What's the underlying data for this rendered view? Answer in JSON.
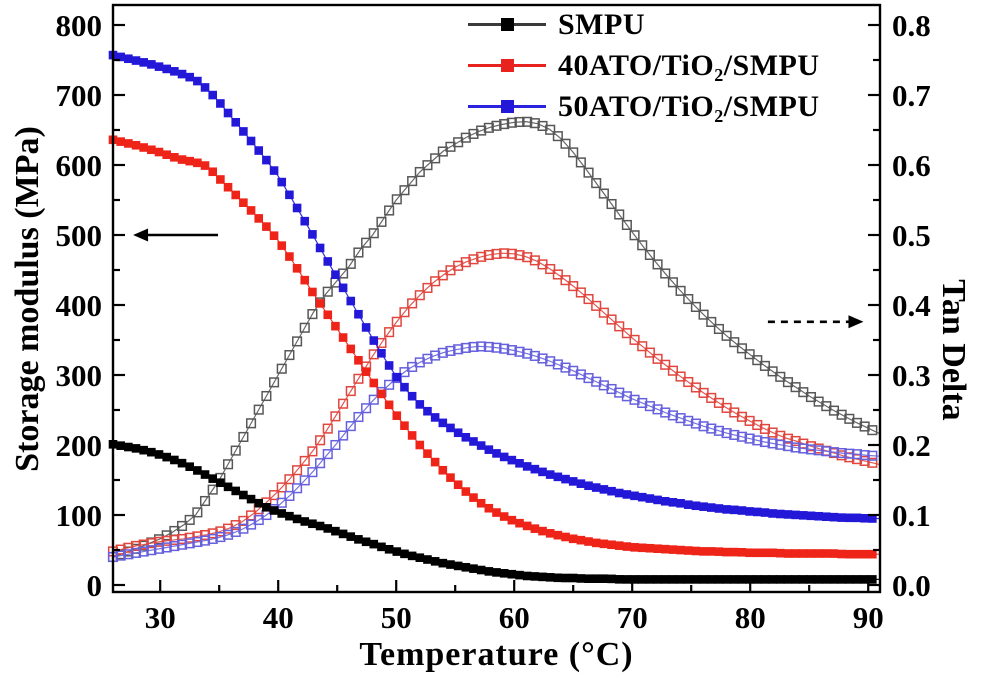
{
  "chart_data": {
    "type": "line",
    "title": "",
    "xlabel": "Temperature (°C)",
    "ylabel_left": "Storage modulus (MPa)",
    "ylabel_right": "Tan Delta",
    "x_range": [
      26,
      91
    ],
    "yleft_range": [
      0,
      838
    ],
    "yright_range": [
      0.0,
      0.838
    ],
    "grid": false,
    "legend_position": "top-center",
    "x_ticks": [
      30,
      40,
      50,
      60,
      70,
      80,
      90
    ],
    "x_minor_ticks": [
      35,
      45,
      55,
      65,
      75,
      85
    ],
    "yleft_ticks": [
      0,
      100,
      200,
      300,
      400,
      500,
      600,
      700,
      800
    ],
    "yleft_minor_ticks": [
      50,
      150,
      250,
      350,
      450,
      550,
      650,
      750
    ],
    "yright_ticks": [
      0.0,
      0.1,
      0.2,
      0.3,
      0.4,
      0.5,
      0.6,
      0.7,
      0.8
    ],
    "yright_minor_ticks": [
      0.05,
      0.15,
      0.25,
      0.35,
      0.45,
      0.55,
      0.65,
      0.75
    ],
    "x": [
      26,
      27,
      28,
      29,
      30,
      31,
      32,
      33,
      34,
      35,
      36,
      37,
      38,
      39,
      40,
      41,
      42,
      43,
      44,
      45,
      46,
      47,
      48,
      49,
      50,
      51,
      52,
      53,
      54,
      55,
      56,
      57,
      58,
      59,
      60,
      61,
      62,
      63,
      64,
      65,
      66,
      67,
      68,
      69,
      70,
      71,
      72,
      73,
      74,
      75,
      76,
      77,
      78,
      79,
      80,
      81,
      82,
      83,
      84,
      85,
      86,
      87,
      88,
      89,
      90,
      91
    ],
    "series": [
      {
        "name": "SMPU",
        "axis": "left",
        "marker": "filled",
        "color": "#000000",
        "values": [
          201,
          198,
          195,
          191,
          186,
          180,
          173,
          165,
          156,
          147,
          138,
          129,
          120,
          111,
          104,
          98,
          92,
          87,
          82,
          76,
          70,
          64,
          59,
          53,
          48,
          43,
          39,
          35,
          31,
          28,
          25,
          22,
          19,
          17,
          15,
          13,
          12,
          11,
          10,
          10,
          9,
          9,
          9,
          8,
          8,
          8,
          8,
          8,
          8,
          8,
          8,
          8,
          8,
          8,
          8,
          8,
          8,
          8,
          8,
          8,
          8,
          8,
          8,
          8,
          8,
          8
        ]
      },
      {
        "name": "40ATO/TiO₂/SMPU",
        "axis": "left",
        "marker": "filled",
        "color": "#ee2418",
        "values": [
          636,
          632,
          628,
          623,
          618,
          612,
          607,
          604,
          598,
          581,
          564,
          547,
          530,
          512,
          492,
          468,
          442,
          416,
          391,
          366,
          341,
          316,
          291,
          267,
          243,
          221,
          200,
          181,
          163,
          147,
          132,
          119,
          108,
          99,
          91,
          85,
          79,
          74,
          70,
          66,
          63,
          60,
          58,
          56,
          54,
          53,
          52,
          51,
          50,
          49,
          48,
          48,
          47,
          47,
          46,
          46,
          46,
          45,
          45,
          45,
          45,
          45,
          44,
          44,
          44,
          44
        ]
      },
      {
        "name": "50ATO/TiO₂/SMPU",
        "axis": "left",
        "marker": "filled",
        "color": "#2418d8",
        "values": [
          757,
          753,
          749,
          745,
          740,
          735,
          729,
          722,
          708,
          690,
          669,
          649,
          628,
          607,
          584,
          556,
          527,
          498,
          468,
          439,
          410,
          381,
          352,
          324,
          298,
          276,
          258,
          243,
          231,
          220,
          210,
          201,
          192,
          184,
          177,
          170,
          164,
          158,
          153,
          148,
          143,
          139,
          135,
          131,
          128,
          125,
          122,
          119,
          117,
          114,
          112,
          110,
          108,
          107,
          105,
          104,
          102,
          101,
          100,
          99,
          98,
          97,
          96,
          96,
          95,
          95
        ]
      },
      {
        "name": "SMPU",
        "axis": "right",
        "marker": "open",
        "color": "#575757",
        "values": [
          0.04,
          0.046,
          0.052,
          0.059,
          0.066,
          0.075,
          0.086,
          0.1,
          0.125,
          0.15,
          0.18,
          0.21,
          0.24,
          0.27,
          0.3,
          0.33,
          0.36,
          0.39,
          0.415,
          0.435,
          0.455,
          0.48,
          0.5,
          0.525,
          0.55,
          0.57,
          0.59,
          0.605,
          0.62,
          0.63,
          0.64,
          0.648,
          0.654,
          0.658,
          0.661,
          0.662,
          0.659,
          0.651,
          0.637,
          0.618,
          0.596,
          0.573,
          0.55,
          0.527,
          0.504,
          0.482,
          0.461,
          0.441,
          0.422,
          0.404,
          0.387,
          0.371,
          0.356,
          0.342,
          0.329,
          0.316,
          0.304,
          0.292,
          0.281,
          0.27,
          0.26,
          0.25,
          0.241,
          0.232,
          0.224,
          0.216
        ]
      },
      {
        "name": "40ATO/TiO₂/SMPU",
        "axis": "right",
        "marker": "open",
        "color": "#e0463e",
        "values": [
          0.048,
          0.052,
          0.056,
          0.059,
          0.062,
          0.064,
          0.066,
          0.069,
          0.072,
          0.076,
          0.082,
          0.091,
          0.103,
          0.118,
          0.134,
          0.152,
          0.172,
          0.193,
          0.218,
          0.245,
          0.273,
          0.3,
          0.327,
          0.352,
          0.375,
          0.396,
          0.414,
          0.43,
          0.443,
          0.454,
          0.462,
          0.468,
          0.472,
          0.474,
          0.473,
          0.469,
          0.462,
          0.452,
          0.44,
          0.427,
          0.413,
          0.398,
          0.383,
          0.368,
          0.353,
          0.339,
          0.325,
          0.312,
          0.299,
          0.287,
          0.275,
          0.264,
          0.253,
          0.243,
          0.234,
          0.225,
          0.217,
          0.21,
          0.205,
          0.199,
          0.194,
          0.189,
          0.184,
          0.18,
          0.176,
          0.172
        ]
      },
      {
        "name": "50ATO/TiO₂/SMPU",
        "axis": "right",
        "marker": "open",
        "color": "#6660dd",
        "values": [
          0.04,
          0.043,
          0.046,
          0.049,
          0.052,
          0.055,
          0.058,
          0.061,
          0.064,
          0.068,
          0.073,
          0.08,
          0.089,
          0.1,
          0.113,
          0.128,
          0.145,
          0.163,
          0.183,
          0.203,
          0.224,
          0.244,
          0.263,
          0.28,
          0.295,
          0.308,
          0.318,
          0.326,
          0.332,
          0.336,
          0.339,
          0.341,
          0.34,
          0.338,
          0.335,
          0.331,
          0.326,
          0.32,
          0.313,
          0.306,
          0.298,
          0.29,
          0.282,
          0.274,
          0.266,
          0.259,
          0.252,
          0.245,
          0.239,
          0.233,
          0.227,
          0.222,
          0.217,
          0.213,
          0.209,
          0.205,
          0.202,
          0.199,
          0.196,
          0.194,
          0.192,
          0.19,
          0.188,
          0.187,
          0.185,
          0.184
        ]
      }
    ],
    "legend": [
      {
        "label": "SMPU",
        "line_color": "#3a3a3a",
        "marker_color": "#000000"
      },
      {
        "label": "40ATO/TiO₂/SMPU",
        "line_color": "#e8231f",
        "marker_color": "#e8231f"
      },
      {
        "label": "50ATO/TiO₂/SMPU",
        "line_color": "#2a22dd",
        "marker_color": "#2418d8"
      }
    ],
    "annotations": {
      "arrows": [
        {
          "name": "storage-axis-arrow",
          "style": "solid",
          "points_to": "left",
          "axis": "left",
          "value": 500,
          "x_tail": 34.9,
          "x_tip": 27.7
        },
        {
          "name": "tan-axis-arrow",
          "style": "dashed",
          "points_to": "right",
          "axis": "right",
          "value": 0.376,
          "x_tail": 81.5,
          "x_tip": 89.6
        }
      ]
    }
  }
}
